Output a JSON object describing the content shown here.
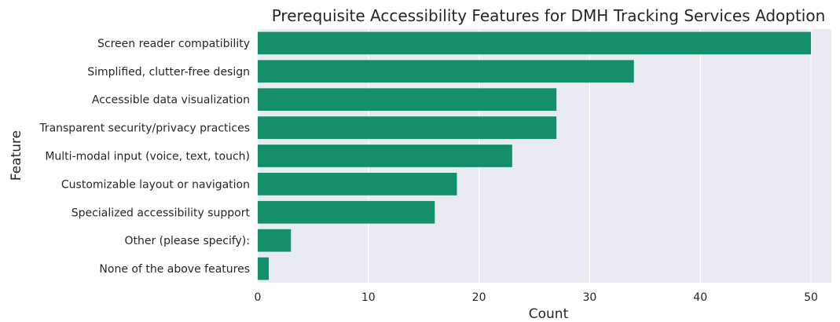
{
  "chart_data": {
    "type": "bar",
    "orientation": "horizontal",
    "title": "Prerequisite Accessibility Features for DMH Tracking Services Adoption",
    "xlabel": "Count",
    "ylabel": "Feature",
    "xlim": [
      0,
      52
    ],
    "xticks": [
      0,
      10,
      20,
      30,
      40,
      50
    ],
    "grid": true,
    "bar_color": "#148F6A",
    "background_color": "#EAEAF2",
    "categories": [
      "Screen reader compatibility",
      "Simplified, clutter-free design",
      "Accessible data visualization",
      "Transparent security/privacy practices",
      "Multi-modal input (voice, text, touch)",
      "Customizable layout or navigation",
      "Specialized accessibility support",
      "Other (please specify):",
      "None of the above features"
    ],
    "values": [
      50,
      34,
      27,
      27,
      23,
      18,
      16,
      3,
      1
    ]
  }
}
